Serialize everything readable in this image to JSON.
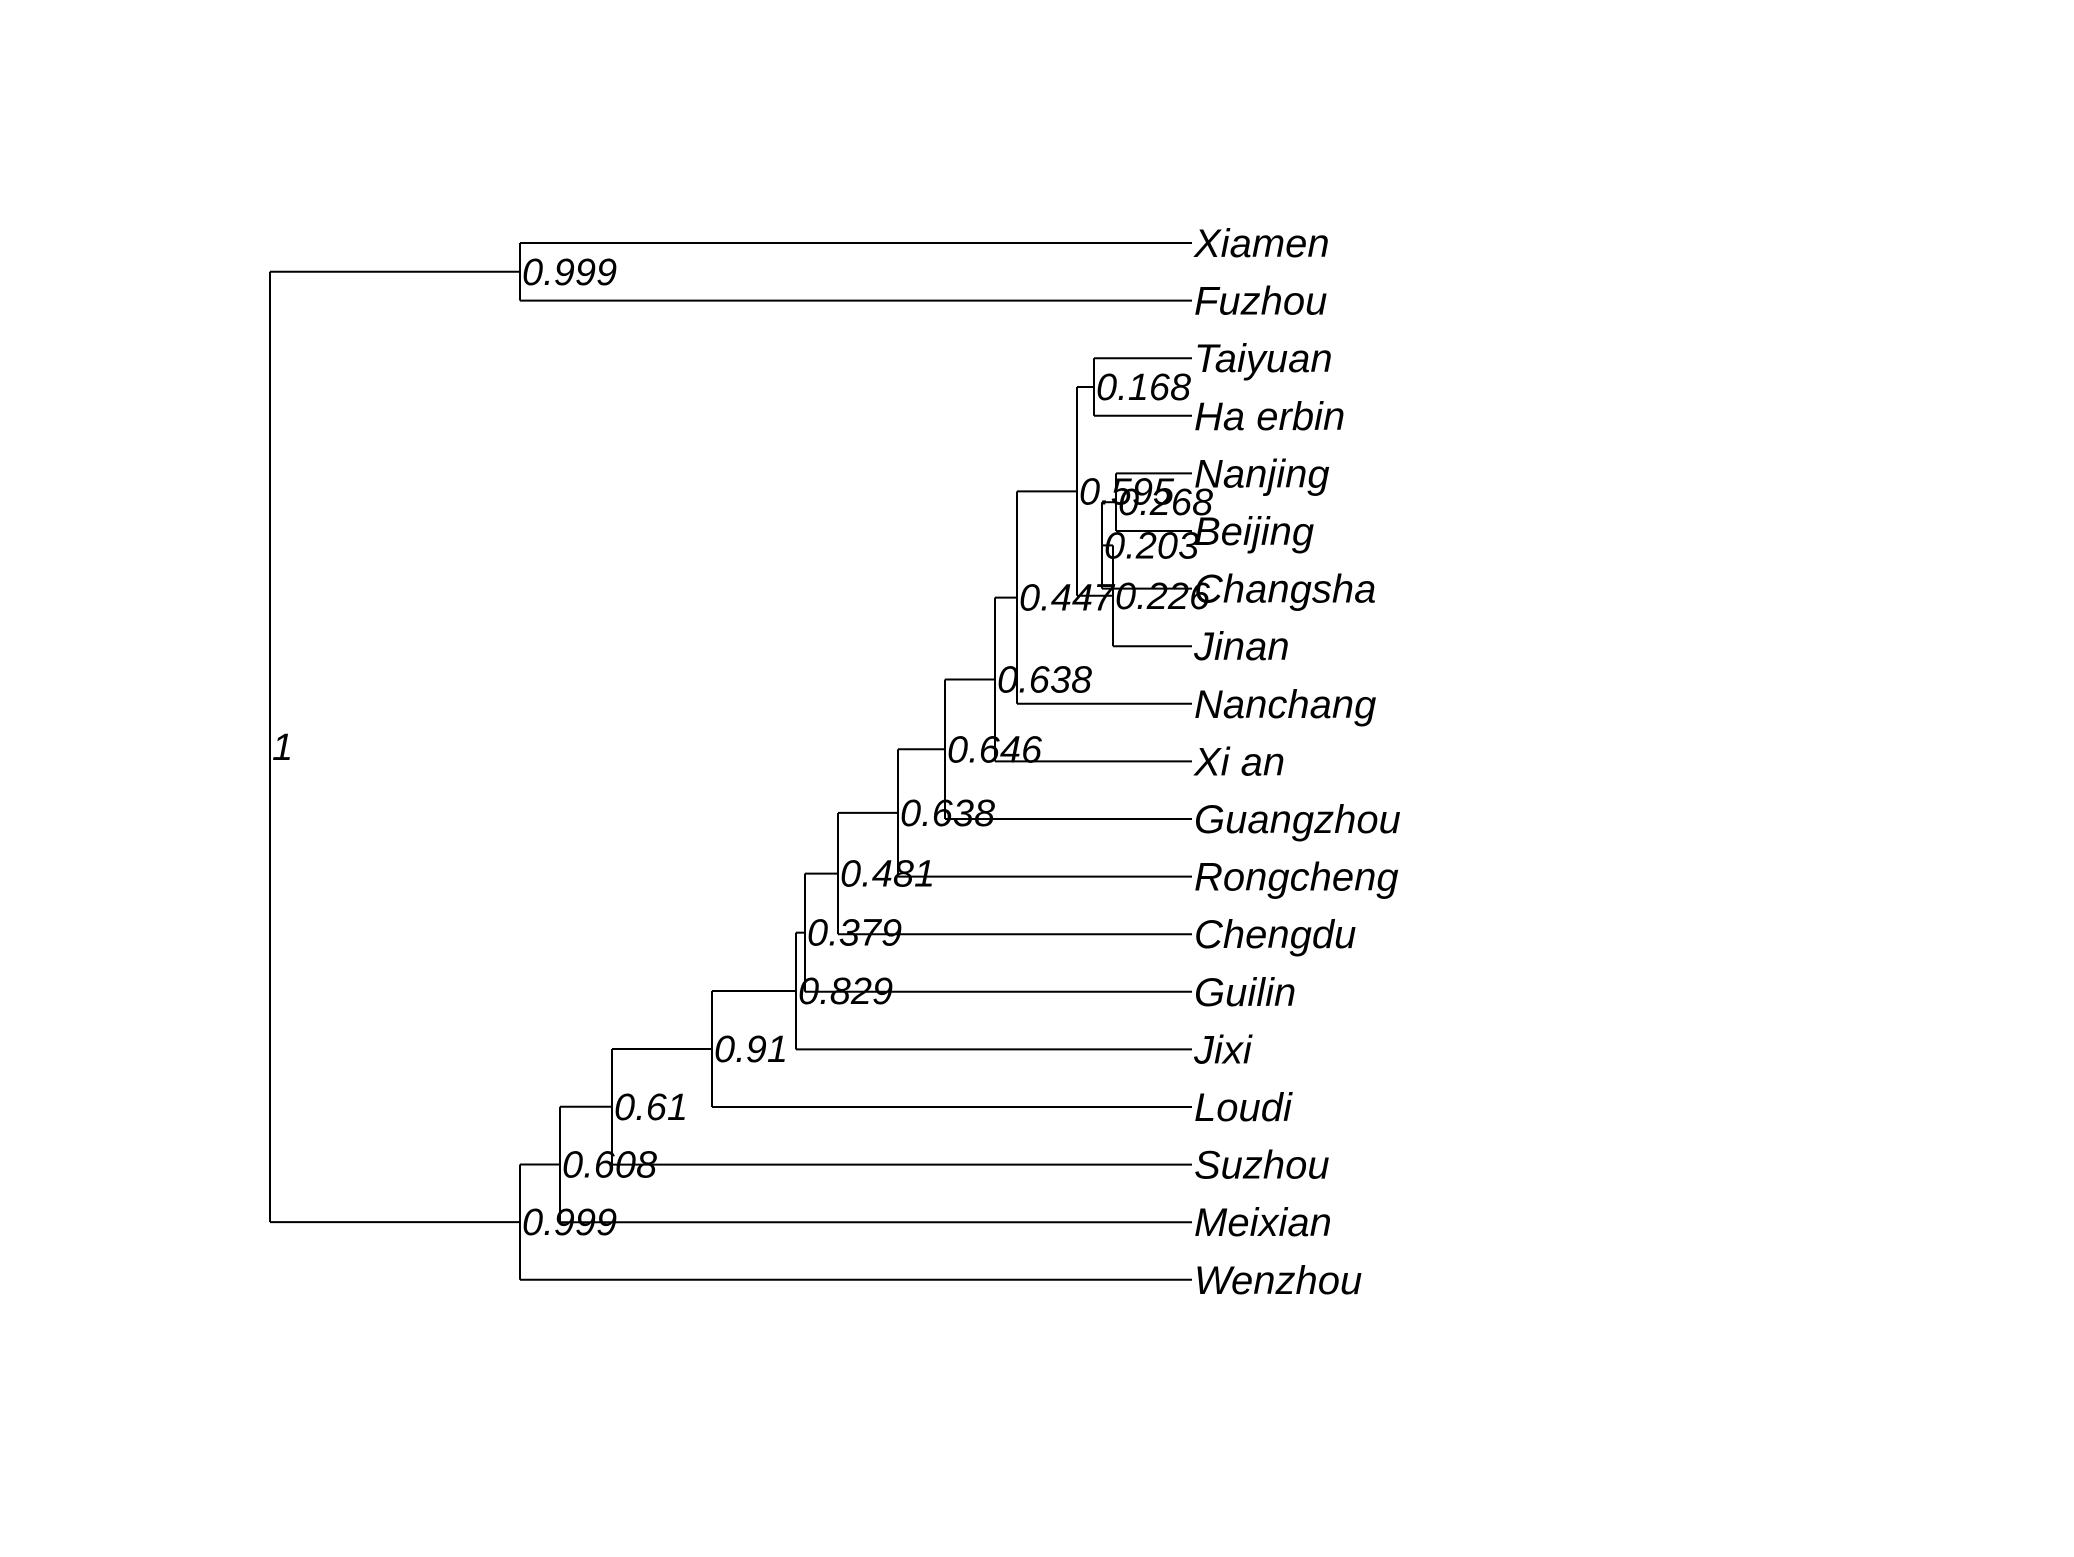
{
  "tree": {
    "support": "1",
    "children": [
      {
        "support": "0.999",
        "children": [
          {
            "name": "Xiamen"
          },
          {
            "name": "Fuzhou"
          }
        ]
      },
      {
        "support": "0.999",
        "children": [
          {
            "support": "0.608",
            "children": [
              {
                "support": "0.61",
                "children": [
                  {
                    "support": "0.91",
                    "children": [
                      {
                        "support": "0.829",
                        "children": [
                          {
                            "support": "0.379",
                            "children": [
                              {
                                "support": "0.481",
                                "children": [
                                  {
                                    "support": "0.638",
                                    "children": [
                                      {
                                        "support": "0.646",
                                        "children": [
                                          {
                                            "support": "0.638",
                                            "children": [
                                              {
                                                "support": "0.447",
                                                "children": [
                                                  {
                                                    "support": "0.595",
                                                    "children": [
                                                      {
                                                        "support": "0.168",
                                                        "children": [
                                                          {
                                                            "name": "Taiyuan"
                                                          },
                                                          {
                                                            "name": "Ha erbin"
                                                          }
                                                        ]
                                                      },
                                                      {
                                                        "support": "0.226",
                                                        "children": [
                                                          {
                                                            "support": "0.203",
                                                            "children": [
                                                              {
                                                                "support": "0.268",
                                                                "children": [
                                                                  {
                                                                    "name": "Nanjing"
                                                                  },
                                                                  {
                                                                    "name": "Beijing"
                                                                  }
                                                                ]
                                                              },
                                                              {
                                                                "name": "Changsha"
                                                              }
                                                            ]
                                                          },
                                                          {
                                                            "name": "Jinan"
                                                          }
                                                        ]
                                                      }
                                                    ]
                                                  },
                                                  {
                                                    "name": "Nanchang"
                                                  }
                                                ]
                                              },
                                              {
                                                "name": "Xi an"
                                              }
                                            ]
                                          },
                                          {
                                            "name": "Guangzhou"
                                          }
                                        ]
                                      },
                                      {
                                        "name": "Rongcheng"
                                      }
                                    ]
                                  },
                                  {
                                    "name": "Chengdu"
                                  }
                                ]
                              },
                              {
                                "name": "Guilin"
                              }
                            ]
                          },
                          {
                            "name": "Jixi"
                          }
                        ]
                      },
                      {
                        "name": "Loudi"
                      }
                    ]
                  },
                  {
                    "name": "Suzhou"
                  }
                ]
              },
              {
                "name": "Meixian"
              }
            ]
          },
          {
            "name": "Wenzhou"
          }
        ]
      }
    ]
  }
}
